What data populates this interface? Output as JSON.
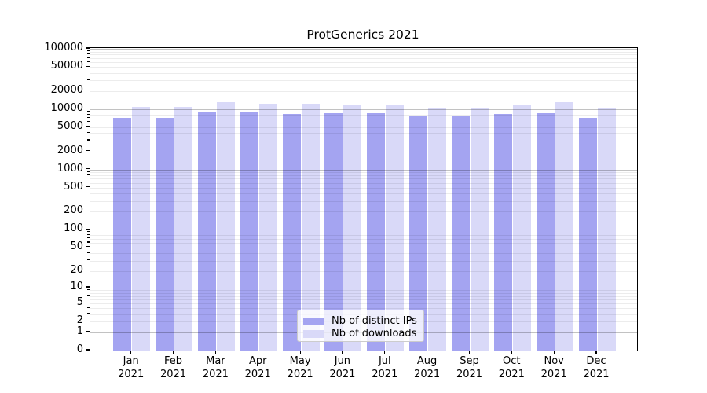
{
  "title": "ProtGenerics 2021",
  "chart_data": {
    "type": "bar",
    "title": "ProtGenerics 2021",
    "xlabel": "",
    "ylabel": "",
    "y_scale": "log1p",
    "ylim": [
      0,
      100000
    ],
    "grid": true,
    "legend_position": "bottom-center",
    "categories": [
      "Jan 2021",
      "Feb 2021",
      "Mar 2021",
      "Apr 2021",
      "May 2021",
      "Jun 2021",
      "Jul 2021",
      "Aug 2021",
      "Sep 2021",
      "Oct 2021",
      "Nov 2021",
      "Dec 2021"
    ],
    "y_ticks": [
      0,
      1,
      2,
      5,
      10,
      20,
      50,
      100,
      200,
      500,
      1000,
      2000,
      5000,
      10000,
      20000,
      50000,
      100000
    ],
    "series": [
      {
        "name": "Nb of distinct IPs",
        "color": "#a4a4f1",
        "values": [
          7200,
          7100,
          9000,
          8700,
          8300,
          8500,
          8600,
          7800,
          7700,
          8300,
          8600,
          7200
        ]
      },
      {
        "name": "Nb of downloads",
        "color": "#d9d9f8",
        "values": [
          10900,
          10800,
          12900,
          12400,
          12300,
          11700,
          11700,
          10700,
          10300,
          11800,
          12900,
          10700
        ]
      }
    ]
  },
  "colors": {
    "major_gridline": "#c2c2c2",
    "minor_gridline": "#ececec",
    "axis": "#000000",
    "background": "#ffffff"
  }
}
